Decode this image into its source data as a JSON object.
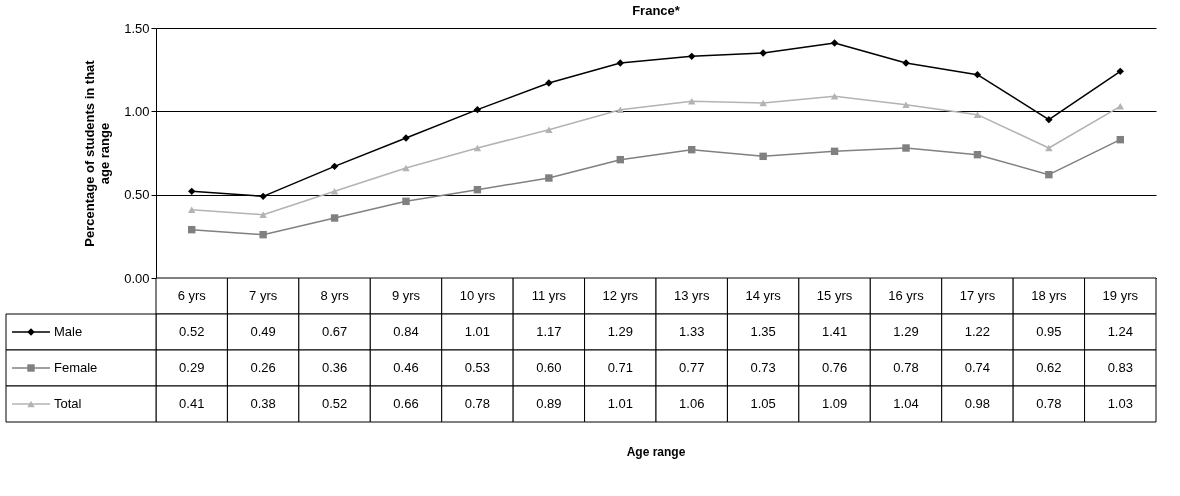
{
  "chart_data": {
    "type": "line",
    "title": "France*",
    "ylabel": "Percentage of students in that age range",
    "annotations": [
      "Age range"
    ],
    "categories": [
      "6 yrs",
      "7 yrs",
      "8 yrs",
      "9 yrs",
      "10 yrs",
      "11 yrs",
      "12 yrs",
      "13 yrs",
      "14 yrs",
      "15 yrs",
      "16 yrs",
      "17 yrs",
      "18 yrs",
      "19 yrs"
    ],
    "series": [
      {
        "name": "Male",
        "color": "#000000",
        "marker": "diamond",
        "values": [
          0.52,
          0.49,
          0.67,
          0.84,
          1.01,
          1.17,
          1.29,
          1.33,
          1.35,
          1.41,
          1.29,
          1.22,
          0.95,
          1.24
        ],
        "value_labels": [
          "0.52",
          "0.49",
          "0.67",
          "0.84",
          "1.01",
          "1.17",
          "1.29",
          "1.33",
          "1.35",
          "1.41",
          "1.29",
          "1.22",
          "0.95",
          "1.24"
        ]
      },
      {
        "name": "Female",
        "color": "#808080",
        "marker": "square",
        "values": [
          0.29,
          0.26,
          0.36,
          0.46,
          0.53,
          0.6,
          0.71,
          0.77,
          0.73,
          0.76,
          0.78,
          0.74,
          0.62,
          0.83
        ],
        "value_labels": [
          "0.29",
          "0.26",
          "0.36",
          "0.46",
          "0.53",
          "0.60",
          "0.71",
          "0.77",
          "0.73",
          "0.76",
          "0.78",
          "0.74",
          "0.62",
          "0.83"
        ]
      },
      {
        "name": "Total",
        "color": "#b3b3b3",
        "marker": "triangle",
        "values": [
          0.41,
          0.38,
          0.52,
          0.66,
          0.78,
          0.89,
          1.01,
          1.06,
          1.05,
          1.09,
          1.04,
          0.98,
          0.78,
          1.03
        ],
        "value_labels": [
          "0.41",
          "0.38",
          "0.52",
          "0.66",
          "0.78",
          "0.89",
          "1.01",
          "1.06",
          "1.05",
          "1.09",
          "1.04",
          "0.98",
          "0.78",
          "1.03"
        ]
      }
    ],
    "ylim": [
      0,
      1.5
    ],
    "yticks": [
      {
        "value": 0,
        "label": "0.00"
      },
      {
        "value": 0.5,
        "label": "0.50"
      },
      {
        "value": 1,
        "label": "1.00"
      },
      {
        "value": 1.5,
        "label": "1.50"
      }
    ],
    "grid": "y",
    "legend": "left",
    "line_style": "solid"
  }
}
